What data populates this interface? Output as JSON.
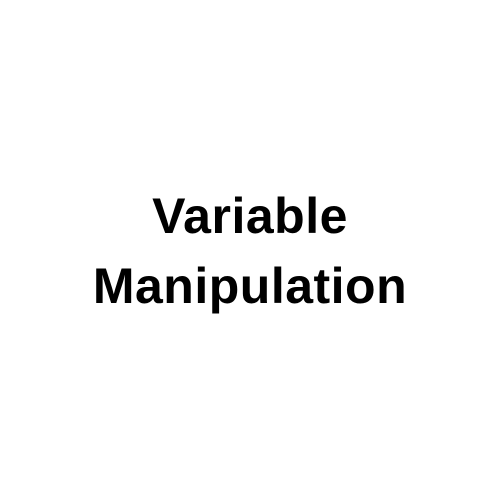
{
  "title": {
    "line1": "Variable",
    "line2": "Manipulation"
  },
  "colors": {
    "background": "#ffffff",
    "text": "#000000"
  }
}
